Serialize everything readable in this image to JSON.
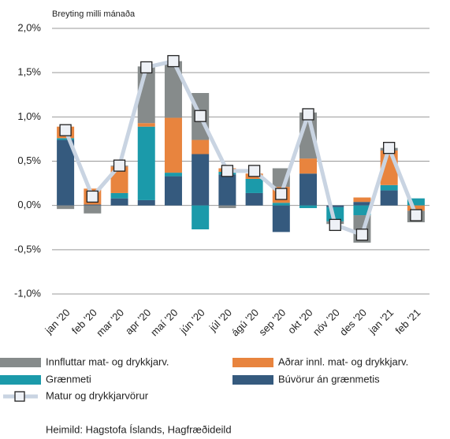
{
  "chart_data": {
    "type": "bar",
    "stacked": true,
    "title": "Breyting milli mánaða",
    "source": "Heimild: Hagstofa Íslands, Hagfræðideild",
    "categories": [
      "jan '20",
      "feb '20",
      "mar '20",
      "apr '20",
      "maí '20",
      "jún '20",
      "júl '20",
      "ágú '20",
      "sep '20",
      "okt '20",
      "nóv '20",
      "des '20",
      "jan '21",
      "feb '21"
    ],
    "series": [
      {
        "name": "Búvörur án grænmetis",
        "color": "#355a7e",
        "values": [
          0.74,
          0.01,
          0.08,
          0.06,
          0.33,
          0.58,
          0.35,
          0.14,
          -0.3,
          0.36,
          -0.02,
          0.04,
          0.17,
          0.0
        ]
      },
      {
        "name": "Grænmeti",
        "color": "#1b9aaa",
        "values": [
          0.02,
          0.0,
          0.06,
          0.83,
          0.04,
          -0.27,
          0.03,
          0.16,
          0.03,
          -0.03,
          -0.16,
          -0.11,
          0.06,
          0.08
        ]
      },
      {
        "name": "Aðrar innl. mat- og drykkjarv.",
        "color": "#e8843e",
        "values": [
          0.13,
          0.18,
          0.3,
          0.04,
          0.62,
          0.16,
          0.04,
          0.06,
          0.18,
          0.17,
          0.0,
          0.05,
          0.39,
          -0.06
        ]
      },
      {
        "name": "Innfluttar mat- og drykkjarv.",
        "color": "#868b8b",
        "values": [
          -0.04,
          -0.09,
          0.01,
          0.64,
          0.64,
          0.53,
          -0.03,
          0.0,
          0.21,
          0.52,
          -0.03,
          -0.31,
          0.03,
          -0.13
        ]
      }
    ],
    "line": {
      "name": "Matur og drykkjarvörur",
      "color": "#c9d4e2",
      "values": [
        0.85,
        0.1,
        0.45,
        1.56,
        1.63,
        1.01,
        0.39,
        0.39,
        0.13,
        1.03,
        -0.22,
        -0.33,
        0.65,
        -0.11
      ]
    },
    "ylim": [
      -1.0,
      2.0
    ],
    "yticks": [
      {
        "value": -1.0,
        "label": "-1,0%"
      },
      {
        "value": -0.5,
        "label": "-0,5%"
      },
      {
        "value": 0,
        "label": "0,0%"
      },
      {
        "value": 0.5,
        "label": "0,5%"
      },
      {
        "value": 1.0,
        "label": "1,0%"
      },
      {
        "value": 1.5,
        "label": "1,5%"
      },
      {
        "value": 2.0,
        "label": "2,0%"
      }
    ],
    "grid": true
  }
}
